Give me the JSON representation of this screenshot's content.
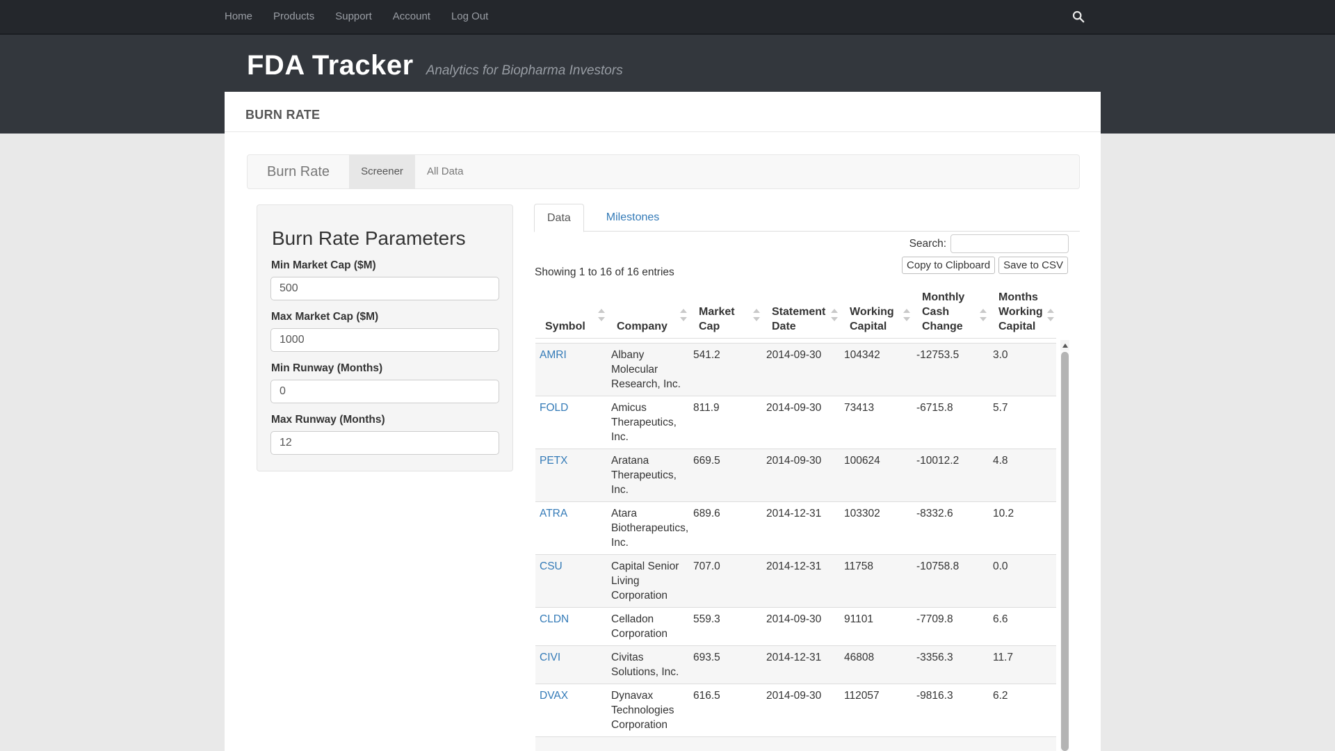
{
  "navbar": {
    "items": [
      {
        "label": "Home"
      },
      {
        "label": "Products"
      },
      {
        "label": "Support"
      },
      {
        "label": "Account"
      },
      {
        "label": "Log Out"
      }
    ],
    "search_icon": "magnifier"
  },
  "masthead": {
    "title": "FDA Tracker",
    "tagline": "Analytics for Biopharma Investors"
  },
  "page": {
    "section_title": "BURN RATE"
  },
  "card_nav": {
    "brand": "Burn Rate",
    "tabs": [
      {
        "label": "Screener",
        "active": true
      },
      {
        "label": "All Data",
        "active": false
      }
    ]
  },
  "parameters": {
    "title": "Burn Rate Parameters",
    "fields": [
      {
        "label": "Min Market Cap ($M)",
        "value": "500"
      },
      {
        "label": "Max Market Cap ($M)",
        "value": "1000"
      },
      {
        "label": "Min Runway (Months)",
        "value": "0"
      },
      {
        "label": "Max Runway (Months)",
        "value": "12"
      }
    ]
  },
  "panel_tabs": [
    {
      "label": "Data",
      "active": true
    },
    {
      "label": "Milestones",
      "active": false
    }
  ],
  "toolbar": {
    "search_label": "Search:",
    "search_value": "",
    "copy_button": "Copy to Clipboard",
    "csv_button": "Save to CSV",
    "showing_text": "Showing 1 to 16 of 16 entries"
  },
  "table": {
    "columns": [
      "Symbol",
      "Company",
      "Market Cap",
      "Statement Date",
      "Working Capital",
      "Monthly Cash Change",
      "Months Working Capital"
    ],
    "rows": [
      {
        "symbol": "AMRI",
        "company": "Albany Molecular Research, Inc.",
        "market_cap": "541.2",
        "statement_date": "2014-09-30",
        "working_capital": "104342",
        "monthly_cash_change": "-12753.5",
        "months_working_capital": "3.0"
      },
      {
        "symbol": "FOLD",
        "company": "Amicus Therapeutics, Inc.",
        "market_cap": "811.9",
        "statement_date": "2014-09-30",
        "working_capital": "73413",
        "monthly_cash_change": "-6715.8",
        "months_working_capital": "5.7"
      },
      {
        "symbol": "PETX",
        "company": "Aratana Therapeutics, Inc.",
        "market_cap": "669.5",
        "statement_date": "2014-09-30",
        "working_capital": "100624",
        "monthly_cash_change": "-10012.2",
        "months_working_capital": "4.8"
      },
      {
        "symbol": "ATRA",
        "company": "Atara Biotherapeutics, Inc.",
        "market_cap": "689.6",
        "statement_date": "2014-12-31",
        "working_capital": "103302",
        "monthly_cash_change": "-8332.6",
        "months_working_capital": "10.2"
      },
      {
        "symbol": "CSU",
        "company": "Capital Senior Living Corporation",
        "market_cap": "707.0",
        "statement_date": "2014-12-31",
        "working_capital": "11758",
        "monthly_cash_change": "-10758.8",
        "months_working_capital": "0.0"
      },
      {
        "symbol": "CLDN",
        "company": "Celladon Corporation",
        "market_cap": "559.3",
        "statement_date": "2014-09-30",
        "working_capital": "91101",
        "monthly_cash_change": "-7709.8",
        "months_working_capital": "6.6"
      },
      {
        "symbol": "CIVI",
        "company": "Civitas Solutions, Inc.",
        "market_cap": "693.5",
        "statement_date": "2014-12-31",
        "working_capital": "46808",
        "monthly_cash_change": "-3356.3",
        "months_working_capital": "11.7"
      },
      {
        "symbol": "DVAX",
        "company": "Dynavax Technologies Corporation",
        "market_cap": "616.5",
        "statement_date": "2014-09-30",
        "working_capital": "112057",
        "monthly_cash_change": "-9816.3",
        "months_working_capital": "6.2"
      }
    ]
  },
  "colors": {
    "accent_link": "#337ab7",
    "navbar_bg": "#24272c",
    "masthead_bg": "#33373d",
    "page_bg": "#e9e9e9",
    "card_nav_bg": "#f8f8f8",
    "active_tab_bg": "#e7e7e7",
    "striped_row_bg": "#f6f6f6",
    "well_bg": "#f5f5f5"
  }
}
